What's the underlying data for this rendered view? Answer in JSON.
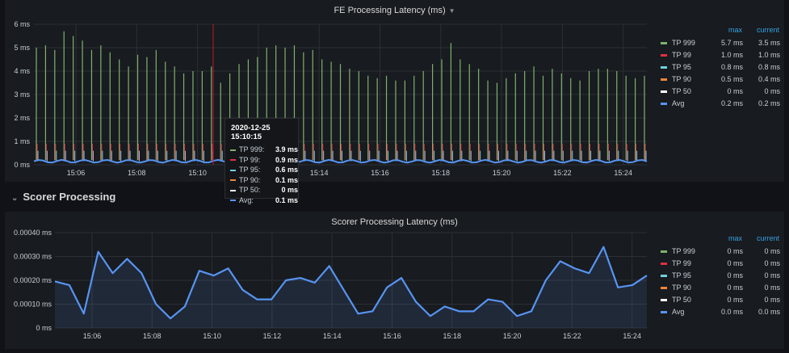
{
  "panel1": {
    "title": "FE Processing Latency (ms)",
    "y_ticks": [
      "6 ms",
      "5 ms",
      "4 ms",
      "3 ms",
      "2 ms",
      "1 ms",
      "0 ms"
    ],
    "x_ticks": [
      "15:06",
      "15:08",
      "15:10",
      "15:12",
      "15:14",
      "15:16",
      "15:18",
      "15:20",
      "15:22",
      "15:24"
    ],
    "legend": {
      "headers": {
        "max": "max",
        "current": "current"
      },
      "rows": [
        {
          "name": "TP 999",
          "max": "5.7 ms",
          "current": "3.5 ms",
          "color": "#7eb26d"
        },
        {
          "name": "TP 99",
          "max": "1.0 ms",
          "current": "1.0 ms",
          "color": "#e02f44"
        },
        {
          "name": "TP 95",
          "max": "0.8 ms",
          "current": "0.8 ms",
          "color": "#6ed0e0"
        },
        {
          "name": "TP 90",
          "max": "0.5 ms",
          "current": "0.4 ms",
          "color": "#ef843c"
        },
        {
          "name": "TP 50",
          "max": "0 ms",
          "current": "0 ms",
          "color": "#ffffff"
        },
        {
          "name": "Avg",
          "max": "0.2 ms",
          "current": "0.2 ms",
          "color": "#5794f2"
        }
      ]
    },
    "tooltip": {
      "time": "2020-12-25 15:10:15",
      "rows": [
        {
          "name": "TP 999:",
          "value": "3.9 ms",
          "color": "#7eb26d"
        },
        {
          "name": "TP 99:",
          "value": "0.9 ms",
          "color": "#e02f44"
        },
        {
          "name": "TP 95:",
          "value": "0.6 ms",
          "color": "#6ed0e0"
        },
        {
          "name": "TP 90:",
          "value": "0.1 ms",
          "color": "#ef843c"
        },
        {
          "name": "TP 50:",
          "value": "0 ms",
          "color": "#ffffff"
        },
        {
          "name": "Avg:",
          "value": "0.1 ms",
          "color": "#5794f2"
        }
      ]
    },
    "chart_data": {
      "type": "line",
      "ylim": [
        0,
        6
      ],
      "tp999_peaks": [
        5.0,
        5.1,
        4.9,
        5.7,
        5.5,
        5.3,
        4.9,
        5.1,
        4.8,
        4.5,
        4.2,
        4.7,
        4.6,
        4.9,
        4.4,
        4.2,
        3.9,
        4.0,
        4.0,
        4.2,
        3.5,
        3.9,
        4.3,
        4.5,
        4.6,
        5.0,
        5.1,
        5.0,
        5.1,
        4.8,
        4.9,
        4.5,
        4.4,
        4.3,
        4.1,
        4.0,
        3.8,
        3.7,
        3.8,
        3.6,
        3.6,
        3.8,
        4.0,
        4.3,
        4.5,
        5.2,
        4.5,
        4.3,
        4.1,
        3.6,
        3.5,
        3.7,
        3.9,
        4.0,
        4.2,
        3.8,
        4.1,
        3.9,
        3.7,
        3.6,
        4.0,
        4.1,
        4.1,
        4.0,
        3.8,
        3.7,
        3.8
      ]
    }
  },
  "row": {
    "title": "Scorer Processing"
  },
  "panel2": {
    "title": "Scorer Processing Latency (ms)",
    "y_ticks": [
      "0.00040 ms",
      "0.00030 ms",
      "0.00020 ms",
      "0.00010 ms",
      "0 ms"
    ],
    "x_ticks": [
      "15:06",
      "15:08",
      "15:10",
      "15:12",
      "15:14",
      "15:16",
      "15:18",
      "15:20",
      "15:22",
      "15:24"
    ],
    "legend": {
      "headers": {
        "max": "max",
        "current": "current"
      },
      "rows": [
        {
          "name": "TP 999",
          "max": "0 ms",
          "current": "0 ms",
          "color": "#7eb26d"
        },
        {
          "name": "TP 99",
          "max": "0 ms",
          "current": "0 ms",
          "color": "#e02f44"
        },
        {
          "name": "TP 95",
          "max": "0 ms",
          "current": "0 ms",
          "color": "#6ed0e0"
        },
        {
          "name": "TP 90",
          "max": "0 ms",
          "current": "0 ms",
          "color": "#ef843c"
        },
        {
          "name": "TP 50",
          "max": "0 ms",
          "current": "0 ms",
          "color": "#ffffff"
        },
        {
          "name": "Avg",
          "max": "0.0 ms",
          "current": "0.0 ms",
          "color": "#5794f2"
        }
      ]
    },
    "chart_data": {
      "type": "area",
      "ylim": [
        0,
        0.0004
      ],
      "values": [
        0.000195,
        0.00018,
        6e-05,
        0.00032,
        0.00023,
        0.00029,
        0.00023,
        0.0001,
        4e-05,
        9e-05,
        0.00024,
        0.00022,
        0.00025,
        0.00016,
        0.00012,
        0.00012,
        0.0002,
        0.00021,
        0.00019,
        0.00026,
        0.00016,
        6e-05,
        7e-05,
        0.00017,
        0.00021,
        0.00011,
        5e-05,
        9e-05,
        7e-05,
        7e-05,
        0.00012,
        0.00011,
        5e-05,
        7e-05,
        0.0002,
        0.00028,
        0.00025,
        0.00023,
        0.00034,
        0.00017,
        0.00018,
        0.00022
      ]
    }
  }
}
